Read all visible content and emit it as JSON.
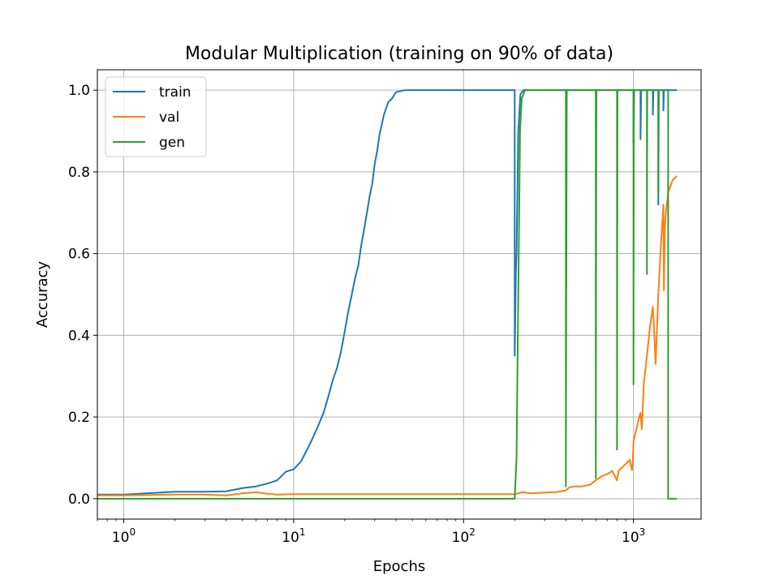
{
  "chart_data": {
    "type": "line",
    "title": "Modular Multiplication (training on 90% of data)",
    "xlabel": "Epochs",
    "ylabel": "Accuracy",
    "xscale": "log",
    "xlim": [
      0.7,
      2500
    ],
    "ylim": [
      -0.05,
      1.05
    ],
    "grid": true,
    "legend_position": "upper-left",
    "x_ticks": [
      {
        "value": 1,
        "base": "10",
        "exp": "0"
      },
      {
        "value": 10,
        "base": "10",
        "exp": "1"
      },
      {
        "value": 100,
        "base": "10",
        "exp": "2"
      },
      {
        "value": 1000,
        "base": "10",
        "exp": "3"
      }
    ],
    "y_ticks": [
      {
        "value": 0.0,
        "label": "0.0"
      },
      {
        "value": 0.2,
        "label": "0.2"
      },
      {
        "value": 0.4,
        "label": "0.4"
      },
      {
        "value": 0.6,
        "label": "0.6"
      },
      {
        "value": 0.8,
        "label": "0.8"
      },
      {
        "value": 1.0,
        "label": "1.0"
      }
    ],
    "series": [
      {
        "name": "train",
        "color": "#1f77b4",
        "points": [
          [
            0.7,
            0.01
          ],
          [
            1,
            0.01
          ],
          [
            2,
            0.017
          ],
          [
            3,
            0.017
          ],
          [
            4,
            0.018
          ],
          [
            5,
            0.026
          ],
          [
            6,
            0.03
          ],
          [
            7,
            0.037
          ],
          [
            8,
            0.045
          ],
          [
            9,
            0.066
          ],
          [
            10,
            0.072
          ],
          [
            11,
            0.09
          ],
          [
            12,
            0.12
          ],
          [
            13,
            0.15
          ],
          [
            14,
            0.18
          ],
          [
            15,
            0.21
          ],
          [
            16,
            0.25
          ],
          [
            17,
            0.29
          ],
          [
            18,
            0.32
          ],
          [
            19,
            0.36
          ],
          [
            20,
            0.41
          ],
          [
            21,
            0.46
          ],
          [
            22,
            0.5
          ],
          [
            23,
            0.54
          ],
          [
            24,
            0.57
          ],
          [
            25,
            0.62
          ],
          [
            26,
            0.66
          ],
          [
            27,
            0.7
          ],
          [
            28,
            0.74
          ],
          [
            29,
            0.77
          ],
          [
            30,
            0.82
          ],
          [
            31,
            0.85
          ],
          [
            32,
            0.89
          ],
          [
            34,
            0.94
          ],
          [
            36,
            0.97
          ],
          [
            38,
            0.98
          ],
          [
            40,
            0.995
          ],
          [
            45,
            1.0
          ],
          [
            100,
            1.0
          ],
          [
            200,
            1.0
          ],
          [
            200,
            0.35
          ],
          [
            203,
            0.55
          ],
          [
            205,
            0.6
          ],
          [
            210,
            0.9
          ],
          [
            216,
            0.99
          ],
          [
            225,
            1.0
          ],
          [
            1000,
            1.0
          ],
          [
            1000,
            0.87
          ],
          [
            1010,
            1.0
          ],
          [
            1100,
            1.0
          ],
          [
            1100,
            0.88
          ],
          [
            1110,
            1.0
          ],
          [
            1300,
            1.0
          ],
          [
            1300,
            0.94
          ],
          [
            1310,
            1.0
          ],
          [
            1400,
            1.0
          ],
          [
            1400,
            0.72
          ],
          [
            1410,
            1.0
          ],
          [
            1500,
            1.0
          ],
          [
            1500,
            0.95
          ],
          [
            1510,
            1.0
          ],
          [
            1800,
            1.0
          ]
        ]
      },
      {
        "name": "val",
        "color": "#ff7f0e",
        "points": [
          [
            0.7,
            0.008
          ],
          [
            1,
            0.008
          ],
          [
            2,
            0.01
          ],
          [
            3,
            0.01
          ],
          [
            4,
            0.008
          ],
          [
            5,
            0.013
          ],
          [
            6,
            0.016
          ],
          [
            7,
            0.012
          ],
          [
            8,
            0.01
          ],
          [
            10,
            0.011
          ],
          [
            12,
            0.011
          ],
          [
            20,
            0.011
          ],
          [
            50,
            0.011
          ],
          [
            100,
            0.011
          ],
          [
            200,
            0.011
          ],
          [
            210,
            0.013
          ],
          [
            220,
            0.016
          ],
          [
            250,
            0.013
          ],
          [
            300,
            0.015
          ],
          [
            350,
            0.016
          ],
          [
            400,
            0.02
          ],
          [
            420,
            0.028
          ],
          [
            450,
            0.03
          ],
          [
            500,
            0.03
          ],
          [
            560,
            0.035
          ],
          [
            600,
            0.045
          ],
          [
            650,
            0.055
          ],
          [
            700,
            0.06
          ],
          [
            750,
            0.068
          ],
          [
            800,
            0.045
          ],
          [
            820,
            0.07
          ],
          [
            850,
            0.075
          ],
          [
            900,
            0.085
          ],
          [
            950,
            0.095
          ],
          [
            980,
            0.07
          ],
          [
            990,
            0.09
          ],
          [
            1000,
            0.14
          ],
          [
            1040,
            0.17
          ],
          [
            1080,
            0.2
          ],
          [
            1100,
            0.21
          ],
          [
            1120,
            0.17
          ],
          [
            1150,
            0.28
          ],
          [
            1200,
            0.35
          ],
          [
            1250,
            0.42
          ],
          [
            1300,
            0.47
          ],
          [
            1320,
            0.42
          ],
          [
            1350,
            0.33
          ],
          [
            1400,
            0.5
          ],
          [
            1450,
            0.62
          ],
          [
            1500,
            0.72
          ],
          [
            1510,
            0.51
          ],
          [
            1530,
            0.66
          ],
          [
            1550,
            0.7
          ],
          [
            1600,
            0.75
          ],
          [
            1700,
            0.78
          ],
          [
            1800,
            0.79
          ]
        ]
      },
      {
        "name": "gen",
        "color": "#2ca02c",
        "points": [
          [
            0.7,
            0.0
          ],
          [
            10,
            0.0
          ],
          [
            100,
            0.0
          ],
          [
            200,
            0.0
          ],
          [
            205,
            0.1
          ],
          [
            210,
            0.5
          ],
          [
            215,
            0.9
          ],
          [
            220,
            0.98
          ],
          [
            230,
            1.0
          ],
          [
            400,
            1.0
          ],
          [
            400,
            0.03
          ],
          [
            405,
            1.0
          ],
          [
            600,
            1.0
          ],
          [
            600,
            0.05
          ],
          [
            605,
            1.0
          ],
          [
            800,
            1.0
          ],
          [
            800,
            0.12
          ],
          [
            805,
            1.0
          ],
          [
            1000,
            1.0
          ],
          [
            1000,
            0.28
          ],
          [
            1005,
            1.0
          ],
          [
            1200,
            1.0
          ],
          [
            1200,
            0.55
          ],
          [
            1205,
            1.0
          ],
          [
            1400,
            1.0
          ],
          [
            1400,
            0.75
          ],
          [
            1405,
            1.0
          ],
          [
            1600,
            1.0
          ],
          [
            1600,
            0.0
          ],
          [
            1800,
            0.0
          ]
        ]
      }
    ]
  }
}
